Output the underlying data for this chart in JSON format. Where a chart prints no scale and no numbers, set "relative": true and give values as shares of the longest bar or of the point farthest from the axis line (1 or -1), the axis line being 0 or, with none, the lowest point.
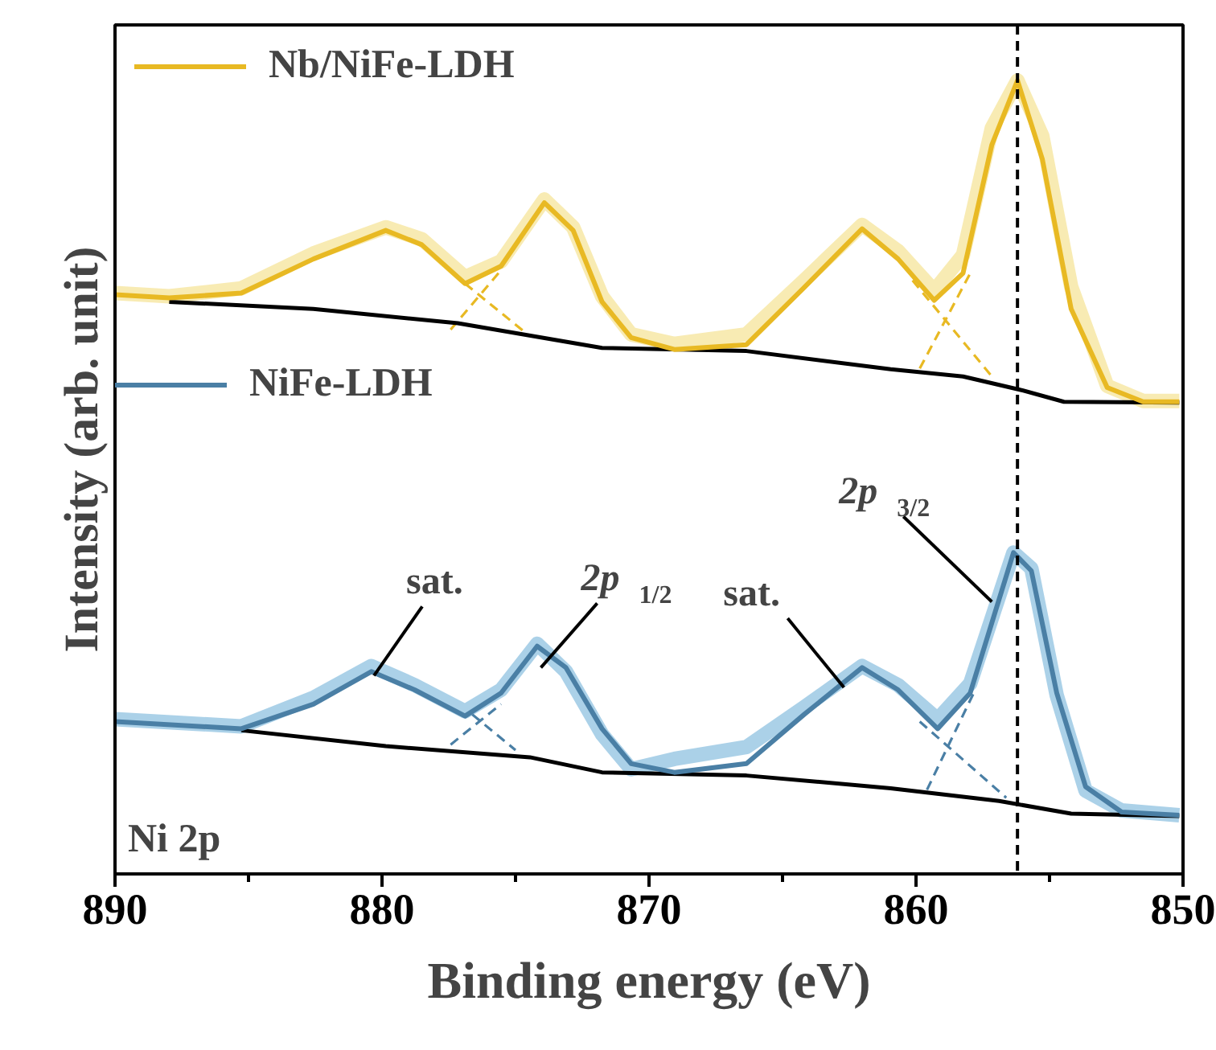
{
  "chart_data": {
    "type": "line",
    "relative": true,
    "xlabel": "Binding energy (eV)",
    "ylabel": "Intensity (arb. unit)",
    "xlim": [
      890,
      850
    ],
    "xticks": [
      890,
      {
        "value": 885,
        "label": null
      },
      880,
      {
        "value": 875,
        "label": null
      },
      870,
      {
        "value": 865,
        "label": null
      },
      860,
      {
        "value": 855,
        "label": null
      },
      850
    ],
    "tick_labels": "x",
    "grid": false,
    "legend": "top left",
    "line_style": "solid",
    "marker": "none",
    "series": [
      {
        "color": "#f6e49a",
        "x": [
          890,
          887.97,
          885.27,
          882.57,
          879.86,
          878.51,
          876.89,
          875.54,
          873.92,
          872.84,
          871.76,
          870.67,
          869.05,
          866.35,
          864.19,
          862.02,
          860.67,
          859.32,
          858.24,
          857.16,
          856.2,
          855.27,
          854.19,
          852.84,
          851.49,
          850.14
        ],
        "values": [
          0.732,
          0.728,
          0.738,
          0.782,
          0.815,
          0.8,
          0.752,
          0.772,
          0.85,
          0.815,
          0.728,
          0.68,
          0.668,
          0.68,
          0.748,
          0.818,
          0.785,
          0.735,
          0.78,
          0.94,
          1.0,
          0.93,
          0.74,
          0.615,
          0.596,
          0.596
        ]
      },
      {
        "color": "#e8b923",
        "line_style": "dashed",
        "x": [
          876.89,
          874.73
        ],
        "values": [
          0.744,
          0.685
        ]
      },
      {
        "color": "#e8b923",
        "line_style": "dashed",
        "x": [
          877.43,
          875.54
        ],
        "values": [
          0.686,
          0.761
        ]
      },
      {
        "color": "#e8b923",
        "line_style": "dashed",
        "x": [
          860.13,
          857.16
        ],
        "values": [
          0.748,
          0.627
        ]
      },
      {
        "color": "#e8b923",
        "line_style": "dashed",
        "x": [
          859.86,
          857.97
        ],
        "values": [
          0.637,
          0.757
        ]
      },
      {
        "color": "#000000",
        "x": [
          887.97,
          882.57,
          877.16,
          871.76,
          866.35,
          860.95,
          858.24,
          856.08,
          854.46,
          850.14
        ],
        "values": [
          0.721,
          0.712,
          0.694,
          0.663,
          0.659,
          0.636,
          0.627,
          0.61,
          0.595,
          0.594
        ]
      },
      {
        "name": "Nb/NiFe-LDH",
        "color": "#e8b923",
        "x": [
          890,
          887.97,
          885.27,
          882.57,
          879.86,
          878.51,
          876.89,
          875.54,
          873.92,
          872.84,
          871.76,
          870.67,
          869.05,
          866.35,
          864.19,
          862.02,
          860.67,
          859.32,
          858.24,
          857.16,
          856.2,
          855.27,
          854.19,
          852.84,
          851.49,
          850.14
        ],
        "values": [
          0.73,
          0.726,
          0.732,
          0.775,
          0.811,
          0.793,
          0.744,
          0.766,
          0.846,
          0.811,
          0.721,
          0.676,
          0.661,
          0.667,
          0.739,
          0.813,
          0.775,
          0.723,
          0.757,
          0.919,
          1,
          0.901,
          0.712,
          0.613,
          0.595,
          0.595
        ]
      },
      {
        "color": "#8fc1e0",
        "x": [
          890,
          885.27,
          882.57,
          880.4,
          878.78,
          876.89,
          875.54,
          874.19,
          873.11,
          871.76,
          870.67,
          869.05,
          866.35,
          864.19,
          862.02,
          860.67,
          859.19,
          857.97,
          856.89,
          856.35,
          855.68,
          854.73,
          853.65,
          852.3,
          850.14
        ],
        "values": [
          0.195,
          0.186,
          0.222,
          0.262,
          0.238,
          0.205,
          0.232,
          0.29,
          0.255,
          0.176,
          0.132,
          0.145,
          0.16,
          0.21,
          0.262,
          0.238,
          0.195,
          0.24,
          0.35,
          0.405,
          0.385,
          0.225,
          0.105,
          0.08,
          0.074
        ]
      },
      {
        "color": "#4a7fa5",
        "line_style": "dashed",
        "x": [
          877.43,
          875.54
        ],
        "values": [
          0.163,
          0.214
        ]
      },
      {
        "color": "#4a7fa5",
        "line_style": "dashed",
        "x": [
          876.62,
          875.0
        ],
        "values": [
          0.201,
          0.156
        ]
      },
      {
        "color": "#4a7fa5",
        "line_style": "dashed",
        "x": [
          859.86,
          856.62
        ],
        "values": [
          0.192,
          0.096
        ]
      },
      {
        "color": "#4a7fa5",
        "line_style": "dashed",
        "x": [
          859.59,
          857.84
        ],
        "values": [
          0.106,
          0.228
        ]
      },
      {
        "color": "#000000",
        "x": [
          885.27,
          879.86,
          874.46,
          871.76,
          866.35,
          860.95,
          856.89,
          854.19,
          850.14
        ],
        "values": [
          0.181,
          0.161,
          0.147,
          0.128,
          0.124,
          0.108,
          0.092,
          0.076,
          0.073
        ]
      },
      {
        "name": "NiFe-LDH",
        "color": "#4a7fa5",
        "x": [
          890,
          885.27,
          882.57,
          880.4,
          878.78,
          876.89,
          875.54,
          874.19,
          873.11,
          871.76,
          870.67,
          869.05,
          866.35,
          864.19,
          862.02,
          860.67,
          859.19,
          857.97,
          856.89,
          856.35,
          855.68,
          854.73,
          853.65,
          852.3,
          850.14
        ],
        "values": [
          0.192,
          0.183,
          0.214,
          0.255,
          0.232,
          0.199,
          0.228,
          0.287,
          0.26,
          0.183,
          0.139,
          0.128,
          0.139,
          0.201,
          0.26,
          0.232,
          0.183,
          0.228,
          0.346,
          0.405,
          0.382,
          0.228,
          0.11,
          0.078,
          0.074
        ]
      }
    ],
    "ref_lines": [
      {
        "axis": "x",
        "value": 856.2,
        "color": "#000000",
        "line_style": "dashed"
      }
    ],
    "annotations": [
      {
        "text": "sat.",
        "x": 880.3,
        "y": 0.25
      },
      {
        "text": "2p $_{1/2}$",
        "x": 874.05,
        "y": 0.26
      },
      {
        "text": "sat.",
        "x": 862.7,
        "y": 0.235
      },
      {
        "text": "2p $_{3/2}$",
        "x": 857.16,
        "y": 0.343
      },
      "Ni 2p"
    ]
  }
}
